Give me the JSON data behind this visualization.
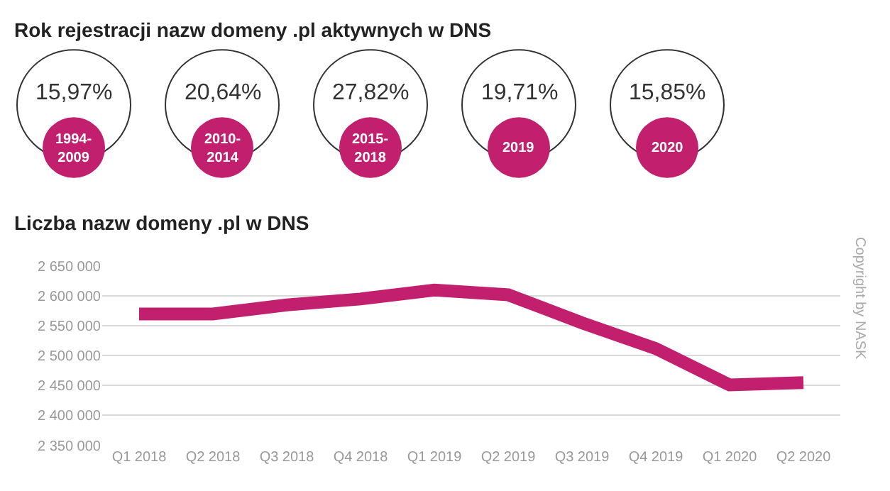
{
  "chart_data": [
    {
      "type": "other",
      "title": "Rok rejestracji nazw domeny .pl aktywnych w DNS",
      "categories": [
        "1994-\n2009",
        "2010-\n2014",
        "2015-\n2018",
        "2019",
        "2020"
      ],
      "values": [
        15.97,
        20.64,
        27.82,
        19.71,
        15.85
      ],
      "value_labels": [
        "15,97%",
        "20,64%",
        "27,82%",
        "19,71%",
        "15,85%"
      ],
      "color": "#c2206f"
    },
    {
      "type": "line",
      "title": "Liczba nazw domeny .pl w DNS",
      "categories": [
        "Q1 2018",
        "Q2 2018",
        "Q3 2018",
        "Q4 2018",
        "Q1 2019",
        "Q2 2019",
        "Q3 2019",
        "Q4 2019",
        "Q1 2020",
        "Q2 2020"
      ],
      "series": [
        {
          "color": "#c2206f",
          "values": [
            2570000,
            2570000,
            2585000,
            2595000,
            2610000,
            2602000,
            2555000,
            2512000,
            2451000,
            2455000
          ]
        }
      ],
      "ylim": [
        2350000,
        2650000
      ],
      "yticks": [
        {
          "value": 2350000,
          "label": "2 350 000"
        },
        {
          "value": 2400000,
          "label": "2 400 000"
        },
        {
          "value": 2450000,
          "label": "2 450 000"
        },
        {
          "value": 2500000,
          "label": "2 500 000"
        },
        {
          "value": 2550000,
          "label": "2 550 000"
        },
        {
          "value": 2600000,
          "label": "2 600 000"
        },
        {
          "value": 2650000,
          "label": "2 650 000"
        }
      ],
      "grid": "y",
      "marker": "none",
      "line_style": "solid",
      "annotations": [
        "Copyright by NASK"
      ]
    }
  ]
}
